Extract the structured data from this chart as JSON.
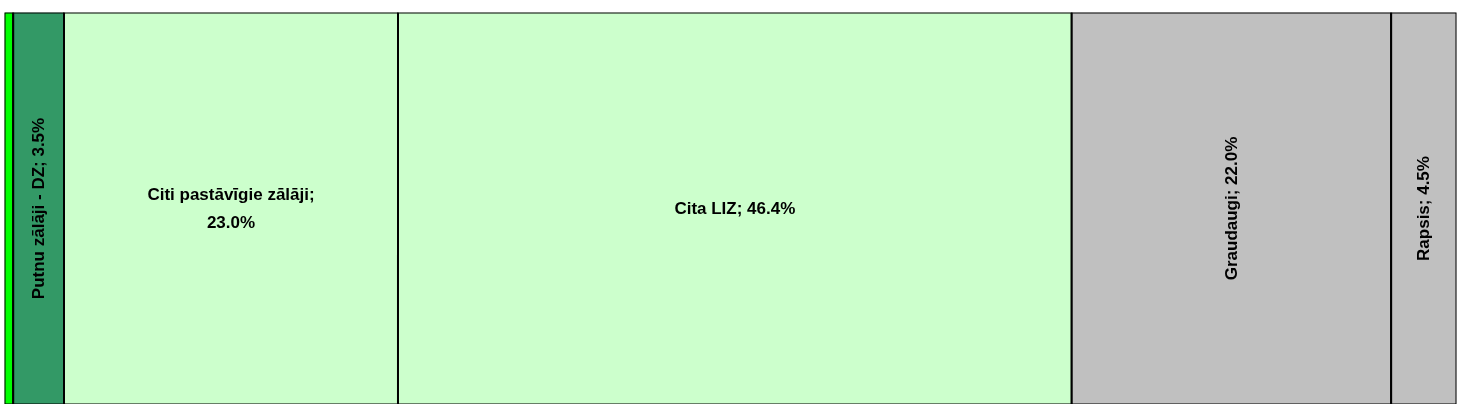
{
  "chart_data": {
    "type": "bar",
    "orientation": "horizontal",
    "stacked": true,
    "categories": [
      null
    ],
    "xlim": [
      0,
      100
    ],
    "tick_labels": false,
    "series": [
      {
        "color": "#00ff00",
        "values": [
          0.6
        ]
      },
      {
        "color": "#339966",
        "values": [
          3.5
        ],
        "value_labels": [
          "Putnu zālāji - DZ; 3.5%"
        ]
      },
      {
        "color": "#ccffcc",
        "values": [
          23.0
        ],
        "value_labels": [
          "Citi pastāvīgie zālāji; 23.0%"
        ]
      },
      {
        "color": "#ccffcc",
        "values": [
          46.4
        ],
        "value_labels": [
          "Cita LIZ; 46.4%"
        ]
      },
      {
        "color": "#c0c0c0",
        "values": [
          22.0
        ],
        "value_labels": [
          "Graudaugi; 22.0%"
        ]
      },
      {
        "color": "#c0c0c0",
        "values": [
          4.5
        ],
        "value_labels": [
          "Rapsis; 4.5%"
        ]
      }
    ]
  }
}
